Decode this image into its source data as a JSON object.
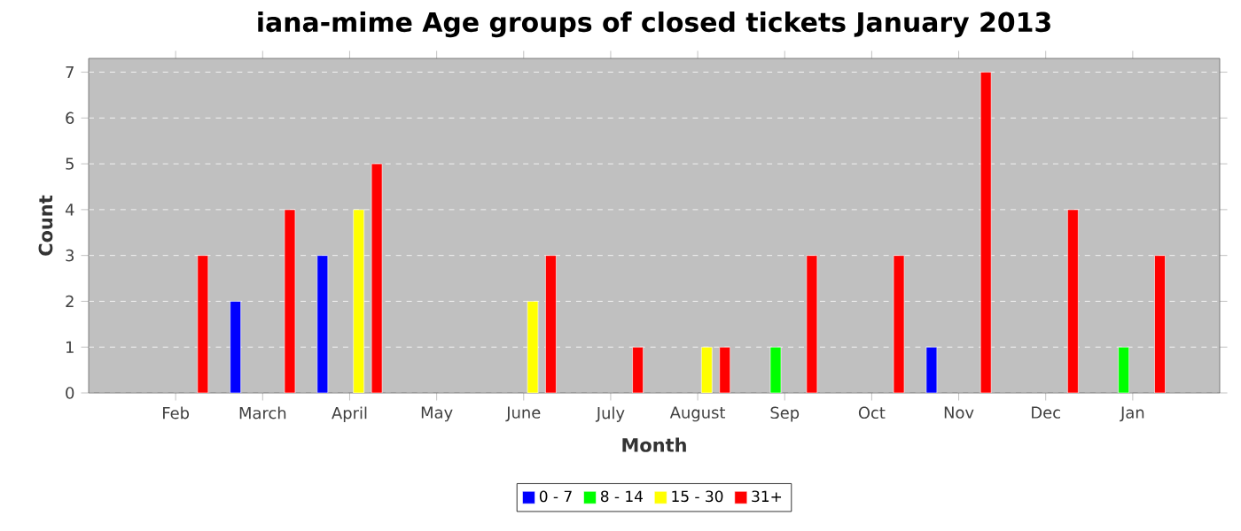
{
  "chart_data": {
    "type": "bar",
    "title": "iana-mime Age groups of closed tickets January 2013",
    "xlabel": "Month",
    "ylabel": "Count",
    "categories": [
      "Feb",
      "March",
      "April",
      "May",
      "June",
      "July",
      "August",
      "Sep",
      "Oct",
      "Nov",
      "Dec",
      "Jan"
    ],
    "series": [
      {
        "name": "0 - 7",
        "color": "#0000ff",
        "values": [
          null,
          2,
          3,
          null,
          null,
          null,
          null,
          null,
          null,
          1,
          null,
          null
        ]
      },
      {
        "name": "8 - 14",
        "color": "#00ff00",
        "values": [
          null,
          null,
          null,
          null,
          null,
          null,
          null,
          1,
          null,
          null,
          null,
          1
        ]
      },
      {
        "name": "15 - 30",
        "color": "#ffff00",
        "values": [
          null,
          null,
          4,
          null,
          2,
          null,
          1,
          null,
          null,
          null,
          null,
          null
        ]
      },
      {
        "name": "31+",
        "color": "#ff0000",
        "values": [
          3,
          4,
          5,
          null,
          3,
          1,
          1,
          3,
          3,
          7,
          4,
          3
        ]
      }
    ],
    "ylim": [
      0,
      7.3
    ],
    "yticks": [
      0,
      1,
      2,
      3,
      4,
      5,
      6,
      7
    ],
    "grid": "y",
    "legend": "bottom"
  }
}
